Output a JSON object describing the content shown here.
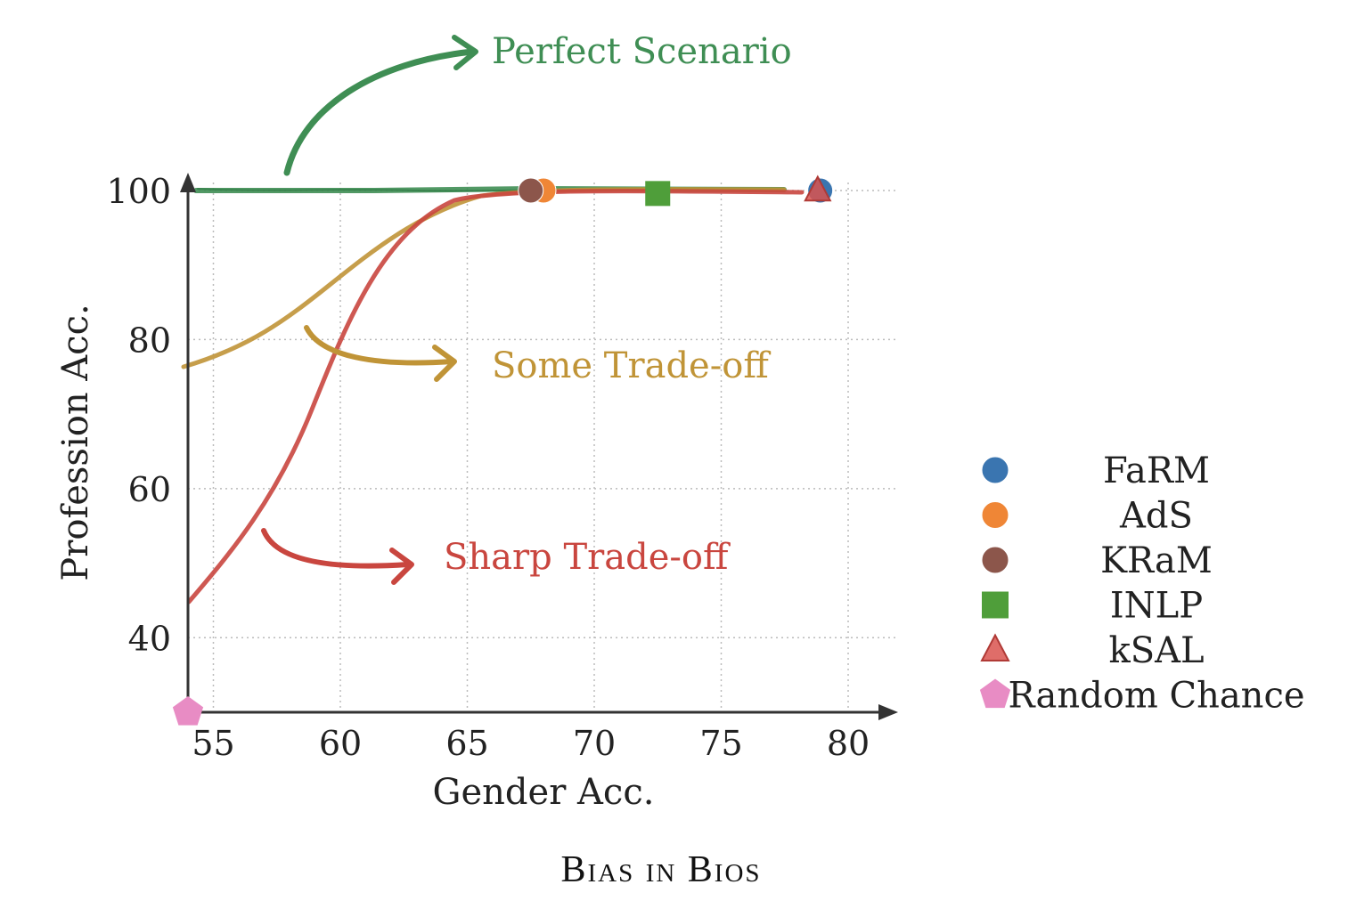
{
  "chart_data": {
    "type": "scatter",
    "title": "Bias in Bios",
    "xlabel": "Gender Acc.",
    "ylabel": "Profession Acc.",
    "xlim": [
      54,
      82
    ],
    "ylim": [
      30,
      103
    ],
    "xticks": [
      55,
      60,
      65,
      70,
      75,
      80
    ],
    "yticks": [
      40,
      60,
      80,
      100
    ],
    "grid": "dotted",
    "legend_position": "right",
    "series": [
      {
        "name": "FaRM",
        "marker": "circle",
        "color": "#3a75b0",
        "x": 78.9,
        "y": 100
      },
      {
        "name": "AdS",
        "marker": "circle",
        "color": "#ef8636",
        "x": 68.0,
        "y": 100
      },
      {
        "name": "KRaM",
        "marker": "circle",
        "color": "#8c564b",
        "x": 67.5,
        "y": 100
      },
      {
        "name": "INLP",
        "marker": "square",
        "color": "#4f9e3a",
        "x": 72.5,
        "y": 99.6
      },
      {
        "name": "kSAL",
        "marker": "triangle",
        "color": "#d9534f",
        "x": 78.8,
        "y": 100
      },
      {
        "name": "Random Chance",
        "marker": "pentagon",
        "color": "#e88cc4",
        "x": 54,
        "y": 30
      }
    ],
    "annotations": [
      {
        "text": "Perfect Scenario",
        "color": "#3f8e54"
      },
      {
        "text": "Some Trade-off",
        "color": "#c09437"
      },
      {
        "text": "Sharp Trade-off",
        "color": "#c9463f"
      }
    ]
  }
}
